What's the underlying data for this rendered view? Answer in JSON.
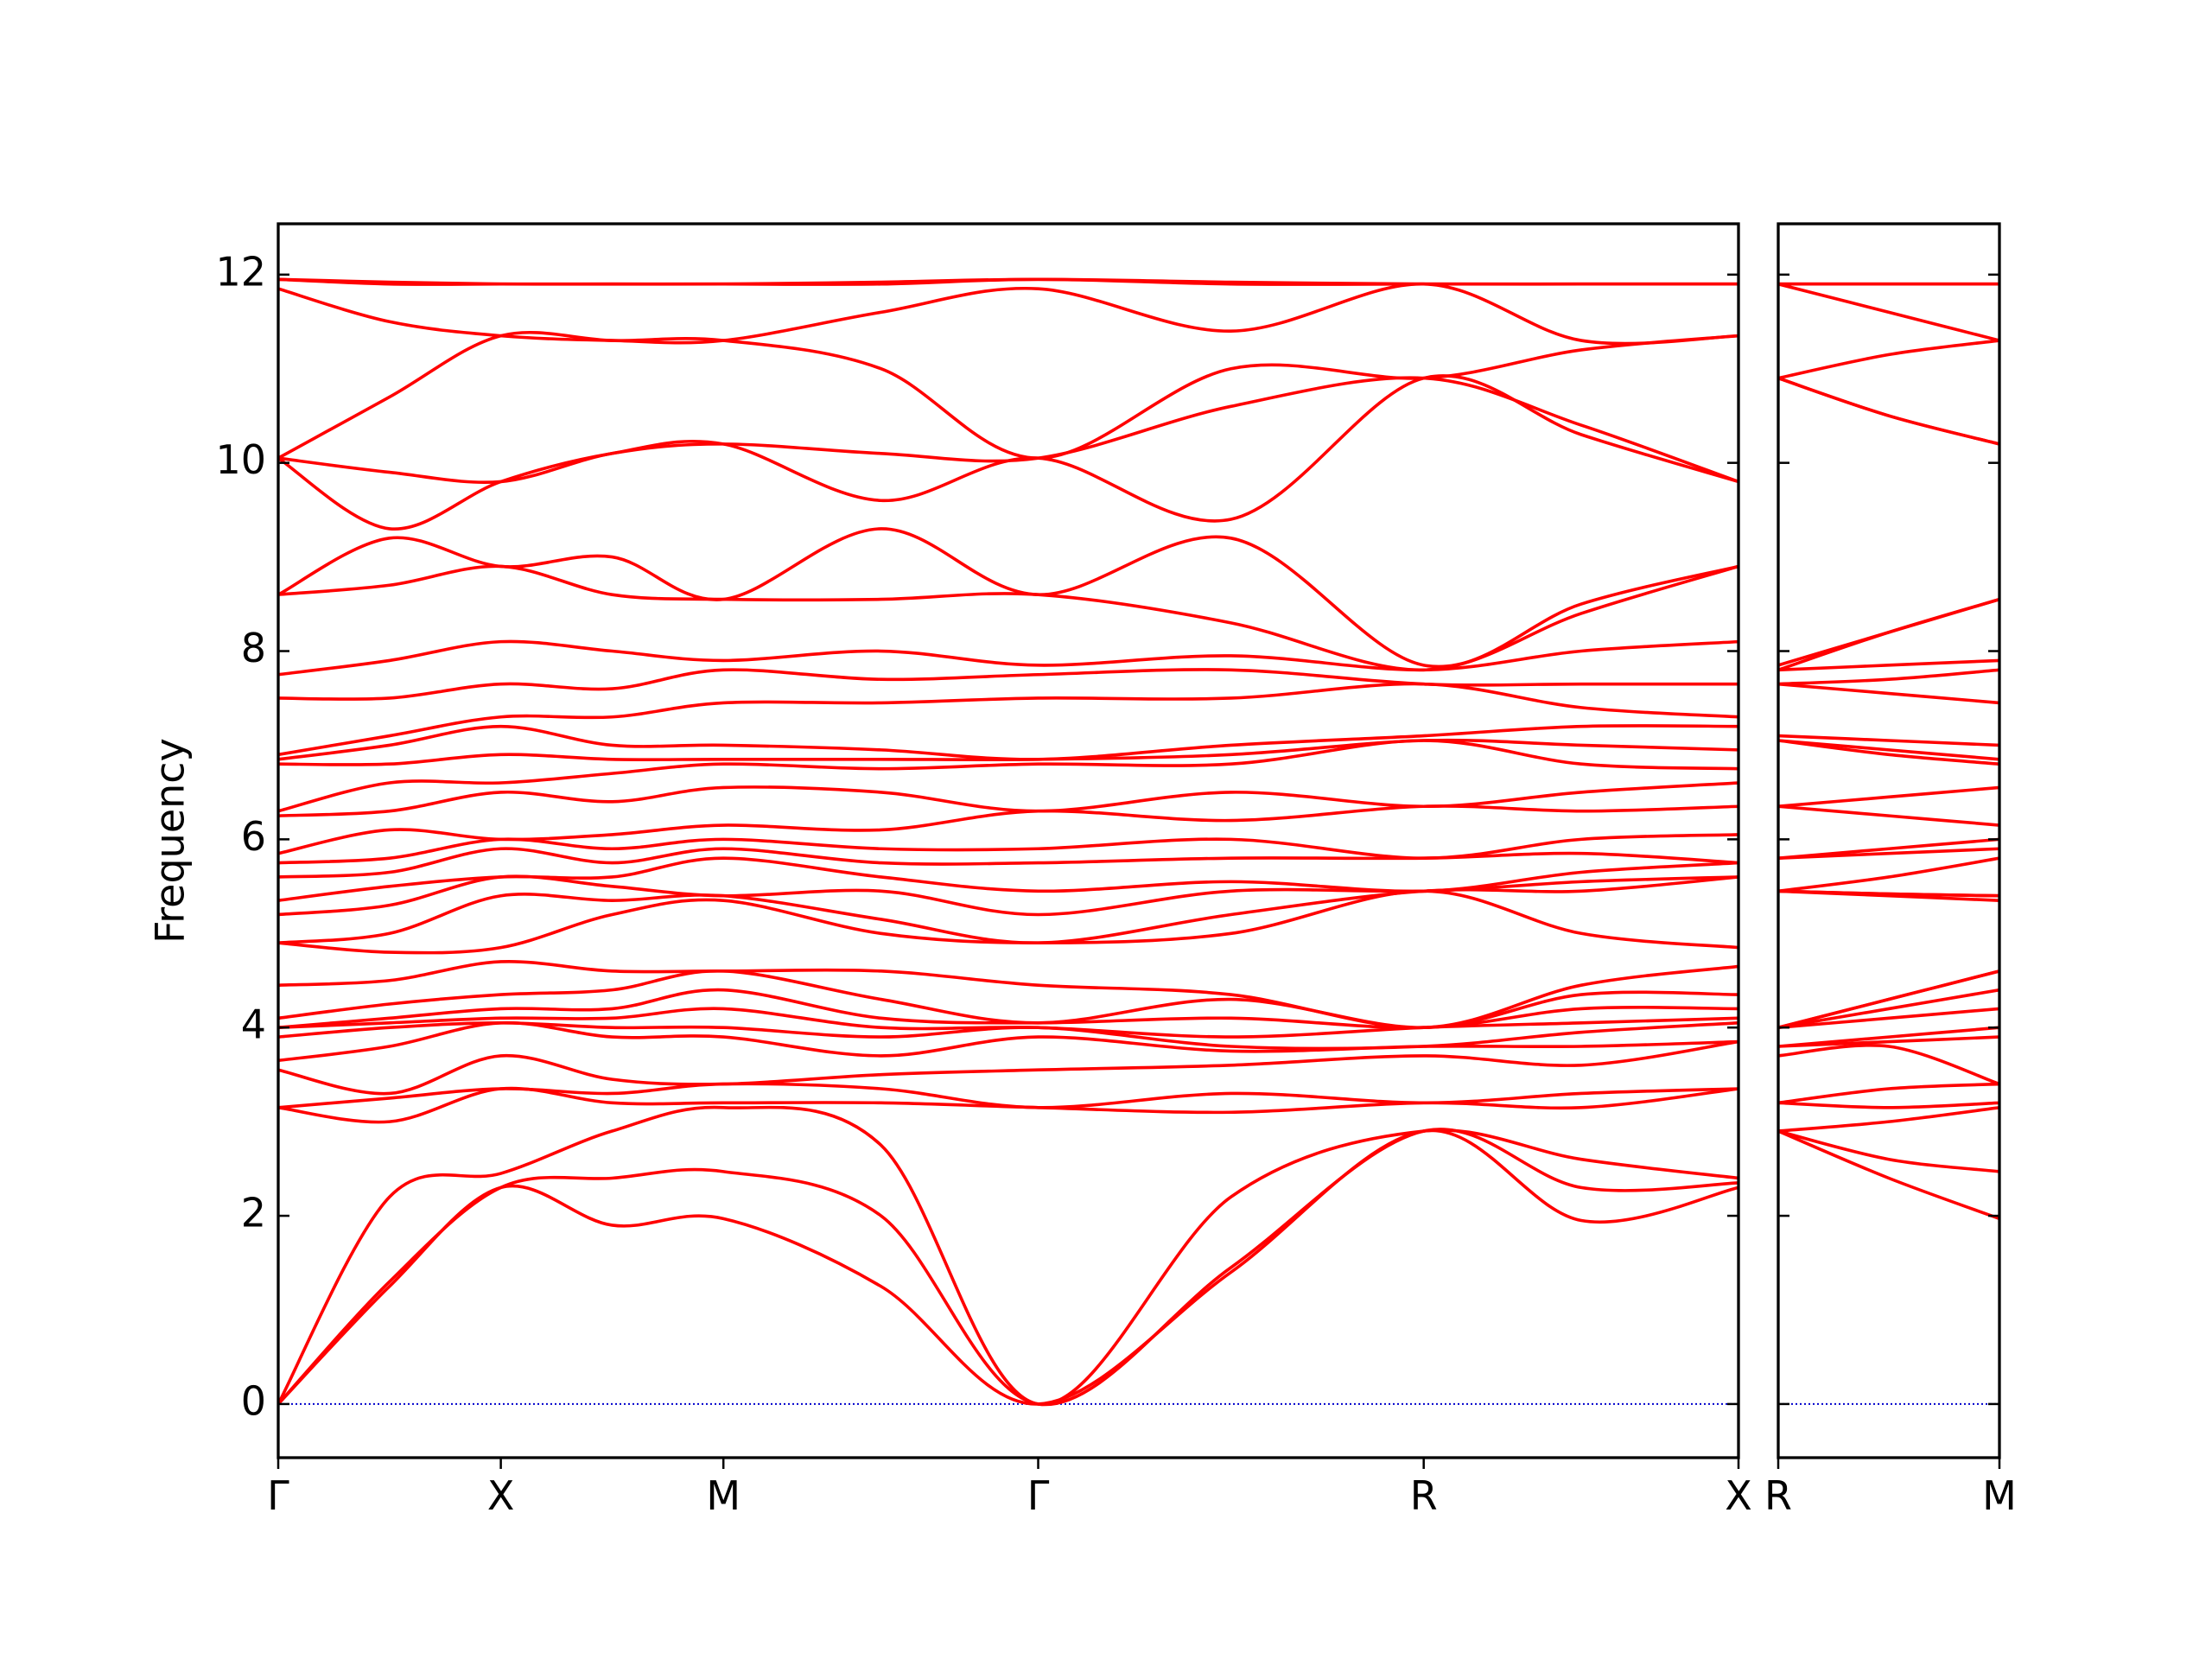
{
  "chart_data": [
    {
      "type": "line",
      "ylabel": "Frequency",
      "color": "#ff0000",
      "hlines": [
        0
      ],
      "hline_color": "#0000cc",
      "show_ytick_labels": true,
      "xlim": [
        0,
        3.2802
      ],
      "ylim": [
        -0.57,
        12.54
      ],
      "xticks": [
        {
          "value": 0,
          "label": "Γ"
        },
        {
          "value": 0.5,
          "label": "X"
        },
        {
          "value": 1,
          "label": "M"
        },
        {
          "value": 1.7071,
          "label": "Γ"
        },
        {
          "value": 2.5731,
          "label": "R"
        },
        {
          "value": 3.2802,
          "label": "X"
        }
      ],
      "yticks": [
        0,
        2,
        4,
        6,
        8,
        10,
        12
      ],
      "x": [
        0,
        0.25,
        0.5,
        0.75,
        1,
        1.354,
        1.7071,
        2.14,
        2.5731,
        2.927,
        3.2802
      ],
      "series": [
        {
          "values": [
            0,
            1.25,
            2.3,
            1.9,
            1.97,
            1.25,
            0,
            1.4,
            2.9,
            1.95,
            2.3
          ]
        },
        {
          "values": [
            0,
            1.3,
            2.3,
            2.4,
            2.47,
            2.0,
            0,
            1.45,
            2.9,
            2.3,
            2.35
          ]
        },
        {
          "values": [
            0,
            2.2,
            2.45,
            2.9,
            3.15,
            2.75,
            0,
            2.2,
            2.9,
            2.6,
            2.4
          ]
        },
        {
          "values": [
            3.15,
            3.0,
            3.35,
            3.2,
            3.2,
            3.2,
            3.15,
            3.1,
            3.2,
            3.15,
            3.35
          ]
        },
        {
          "values": [
            3.15,
            3.25,
            3.35,
            3.3,
            3.4,
            3.35,
            3.15,
            3.3,
            3.2,
            3.3,
            3.35
          ]
        },
        {
          "values": [
            3.55,
            3.3,
            3.7,
            3.45,
            3.4,
            3.5,
            3.55,
            3.6,
            3.7,
            3.6,
            3.85
          ]
        },
        {
          "values": [
            3.65,
            3.8,
            4.05,
            3.9,
            3.9,
            3.7,
            3.9,
            3.75,
            3.8,
            3.8,
            3.85
          ]
        },
        {
          "values": [
            3.9,
            4.0,
            4.05,
            4.0,
            4.0,
            3.9,
            4.0,
            3.8,
            3.8,
            3.95,
            4.05
          ]
        },
        {
          "values": [
            4.0,
            4.05,
            4.1,
            4.1,
            4.2,
            4.0,
            4.0,
            3.9,
            4.0,
            4.05,
            4.1
          ]
        },
        {
          "values": [
            4.0,
            4.1,
            4.2,
            4.2,
            4.4,
            4.1,
            4.05,
            4.1,
            4.0,
            4.2,
            4.2
          ]
        },
        {
          "values": [
            4.1,
            4.25,
            4.35,
            4.4,
            4.6,
            4.3,
            4.05,
            4.3,
            4.0,
            4.35,
            4.35
          ]
        },
        {
          "values": [
            4.45,
            4.5,
            4.7,
            4.6,
            4.6,
            4.6,
            4.45,
            4.35,
            4.0,
            4.45,
            4.65
          ]
        },
        {
          "values": [
            4.9,
            4.8,
            4.85,
            5.2,
            5.35,
            5.0,
            4.9,
            5.0,
            5.45,
            5.0,
            4.85
          ]
        },
        {
          "values": [
            4.9,
            5.0,
            5.4,
            5.35,
            5.4,
            5.15,
            4.9,
            5.2,
            5.45,
            5.45,
            5.6
          ]
        },
        {
          "values": [
            5.2,
            5.3,
            5.6,
            5.5,
            5.4,
            5.45,
            5.2,
            5.45,
            5.45,
            5.55,
            5.6
          ]
        },
        {
          "values": [
            5.35,
            5.5,
            5.6,
            5.6,
            5.8,
            5.6,
            5.45,
            5.55,
            5.45,
            5.65,
            5.75
          ]
        },
        {
          "values": [
            5.6,
            5.65,
            5.9,
            5.75,
            5.9,
            5.75,
            5.75,
            5.8,
            5.8,
            5.85,
            5.75
          ]
        },
        {
          "values": [
            5.75,
            5.8,
            6.0,
            5.9,
            6.0,
            5.9,
            5.9,
            6.0,
            5.8,
            6.0,
            6.05
          ]
        },
        {
          "values": [
            5.85,
            6.1,
            6.0,
            6.05,
            6.15,
            6.1,
            6.3,
            6.2,
            6.35,
            6.3,
            6.35
          ]
        },
        {
          "values": [
            6.25,
            6.3,
            6.5,
            6.4,
            6.55,
            6.5,
            6.3,
            6.5,
            6.35,
            6.5,
            6.6
          ]
        },
        {
          "values": [
            6.3,
            6.6,
            6.6,
            6.7,
            6.8,
            6.75,
            6.8,
            6.8,
            7.05,
            6.8,
            6.75
          ]
        },
        {
          "values": [
            6.8,
            6.8,
            6.9,
            6.85,
            6.85,
            6.85,
            6.85,
            6.9,
            7.05,
            7.0,
            6.95
          ]
        },
        {
          "values": [
            6.85,
            7.0,
            7.2,
            7.0,
            7.0,
            6.95,
            6.85,
            7.0,
            7.1,
            7.2,
            7.2
          ]
        },
        {
          "values": [
            6.9,
            7.1,
            7.3,
            7.3,
            7.45,
            7.45,
            7.5,
            7.5,
            7.65,
            7.4,
            7.3
          ]
        },
        {
          "values": [
            7.5,
            7.5,
            7.65,
            7.6,
            7.8,
            7.7,
            7.75,
            7.8,
            7.65,
            7.65,
            7.65
          ]
        },
        {
          "values": [
            7.75,
            7.9,
            8.1,
            8.0,
            7.9,
            8.0,
            7.85,
            7.95,
            7.8,
            8.0,
            8.1
          ]
        },
        {
          "values": [
            8.6,
            8.7,
            8.9,
            8.6,
            8.55,
            8.55,
            8.6,
            8.3,
            7.8,
            8.4,
            8.9
          ]
        },
        {
          "values": [
            8.6,
            9.2,
            8.9,
            9.0,
            8.55,
            9.3,
            8.6,
            9.2,
            7.85,
            8.5,
            8.9
          ]
        },
        {
          "values": [
            10.05,
            9.3,
            9.8,
            10.1,
            10.2,
            9.6,
            10.05,
            9.4,
            10.9,
            10.3,
            9.8
          ]
        },
        {
          "values": [
            10.05,
            9.9,
            9.8,
            10.1,
            10.2,
            10.1,
            10.05,
            10.6,
            10.9,
            10.4,
            9.8
          ]
        },
        {
          "values": [
            10.05,
            10.7,
            11.35,
            11.3,
            11.3,
            11.0,
            10.05,
            11.0,
            10.9,
            11.2,
            11.35
          ]
        },
        {
          "values": [
            11.85,
            11.5,
            11.35,
            11.3,
            11.3,
            11.6,
            11.85,
            11.4,
            11.9,
            11.3,
            11.35
          ]
        },
        {
          "values": [
            11.95,
            11.9,
            11.9,
            11.9,
            11.9,
            11.9,
            11.95,
            11.9,
            11.9,
            11.9,
            11.9
          ]
        },
        {
          "values": [
            11.95,
            11.92,
            11.9,
            11.9,
            11.9,
            11.92,
            11.95,
            11.92,
            11.9,
            11.9,
            11.9
          ]
        }
      ]
    },
    {
      "type": "line",
      "color": "#ff0000",
      "hlines": [
        0
      ],
      "hline_color": "#0000cc",
      "show_ytick_labels": false,
      "xlim": [
        0,
        0.5
      ],
      "ylim": [
        -0.57,
        12.54
      ],
      "xticks": [
        {
          "value": 0,
          "label": "R"
        },
        {
          "value": 0.5,
          "label": "M"
        }
      ],
      "yticks": [
        0,
        2,
        4,
        6,
        8,
        10,
        12
      ],
      "x": [
        0,
        0.25,
        0.5
      ],
      "series": [
        {
          "values": [
            2.9,
            2.4,
            1.97
          ]
        },
        {
          "values": [
            2.9,
            2.6,
            2.47
          ]
        },
        {
          "values": [
            2.9,
            3.0,
            3.15
          ]
        },
        {
          "values": [
            3.2,
            3.15,
            3.2
          ]
        },
        {
          "values": [
            3.2,
            3.35,
            3.4
          ]
        },
        {
          "values": [
            3.7,
            3.8,
            3.4
          ]
        },
        {
          "values": [
            3.8,
            3.85,
            3.9
          ]
        },
        {
          "values": [
            3.8,
            3.9,
            4.0
          ]
        },
        {
          "values": [
            4.0,
            4.1,
            4.2
          ]
        },
        {
          "values": [
            4.0,
            4.2,
            4.4
          ]
        },
        {
          "values": [
            4.0,
            4.3,
            4.6
          ]
        },
        {
          "values": [
            4.0,
            4.3,
            4.6
          ]
        },
        {
          "values": [
            5.45,
            5.4,
            5.35
          ]
        },
        {
          "values": [
            5.45,
            5.42,
            5.4
          ]
        },
        {
          "values": [
            5.45,
            5.42,
            5.4
          ]
        },
        {
          "values": [
            5.45,
            5.6,
            5.8
          ]
        },
        {
          "values": [
            5.8,
            5.85,
            5.9
          ]
        },
        {
          "values": [
            5.8,
            5.9,
            6.0
          ]
        },
        {
          "values": [
            6.35,
            6.25,
            6.15
          ]
        },
        {
          "values": [
            6.35,
            6.45,
            6.55
          ]
        },
        {
          "values": [
            7.05,
            6.9,
            6.8
          ]
        },
        {
          "values": [
            7.05,
            6.95,
            6.85
          ]
        },
        {
          "values": [
            7.1,
            7.05,
            7.0
          ]
        },
        {
          "values": [
            7.65,
            7.55,
            7.45
          ]
        },
        {
          "values": [
            7.65,
            7.7,
            7.8
          ]
        },
        {
          "values": [
            7.8,
            7.85,
            7.9
          ]
        },
        {
          "values": [
            7.8,
            8.2,
            8.55
          ]
        },
        {
          "values": [
            7.85,
            8.2,
            8.55
          ]
        },
        {
          "values": [
            10.9,
            10.5,
            10.2
          ]
        },
        {
          "values": [
            10.9,
            10.5,
            10.2
          ]
        },
        {
          "values": [
            10.9,
            11.15,
            11.3
          ]
        },
        {
          "values": [
            11.9,
            11.6,
            11.3
          ]
        },
        {
          "values": [
            11.9,
            11.9,
            11.9
          ]
        },
        {
          "values": [
            11.9,
            11.9,
            11.9
          ]
        }
      ]
    }
  ]
}
